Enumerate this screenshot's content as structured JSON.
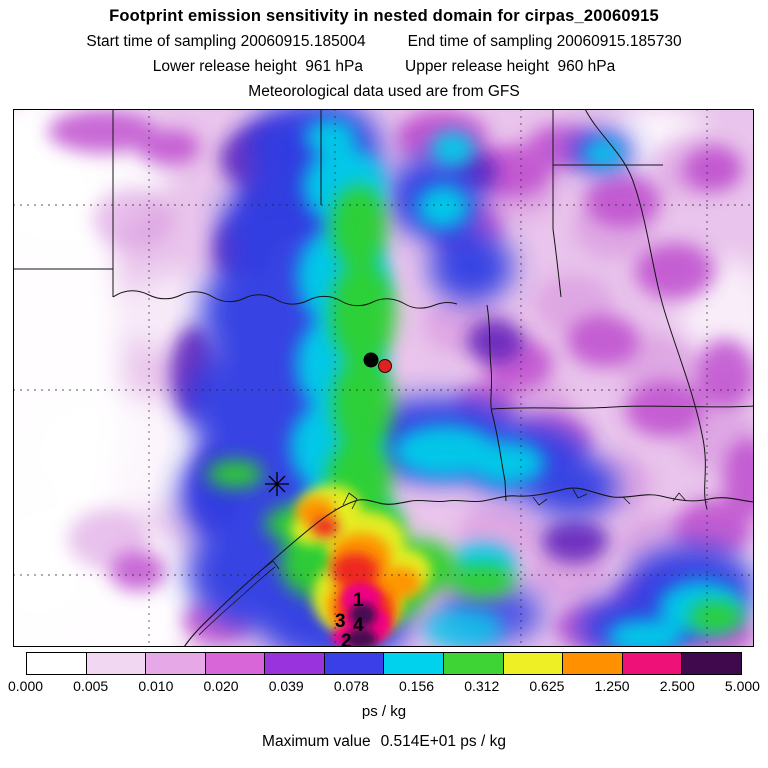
{
  "header": {
    "title": "Footprint emission sensitivity in nested domain for cirpas_20060915",
    "start_time": "Start time of sampling 20060915.185004",
    "end_time": "End time of sampling 20060915.185730",
    "lower_release": "Lower release height  961 hPa",
    "upper_release": "Upper release height  960 hPa",
    "met_line": "Meteorological data used are from GFS"
  },
  "map": {
    "markers": {
      "labels": [
        "1",
        "3",
        "4",
        "2"
      ]
    }
  },
  "colorbar": {
    "ticks": [
      "0.000",
      "0.005",
      "0.010",
      "0.020",
      "0.039",
      "0.078",
      "0.156",
      "0.312",
      "0.625",
      "1.250",
      "2.500",
      "5.000"
    ],
    "colors": [
      "#ffffff",
      "#f2d7f2",
      "#e6a8e6",
      "#d966d9",
      "#9933dd",
      "#3a3fe8",
      "#00d2ee",
      "#3fd435",
      "#efef25",
      "#ff9000",
      "#ee1177",
      "#40094e"
    ],
    "units": "ps / kg"
  },
  "footer": {
    "max_label": "Maximum value",
    "max_value": "0.514E+01 ps / kg"
  },
  "chart_data": {
    "type": "heatmap",
    "title": "Footprint emission sensitivity in nested domain for cirpas_20060915",
    "subtitle_lines": [
      "Start time of sampling 20060915.185004",
      "End time of sampling 20060915.185730",
      "Lower release height 961 hPa",
      "Upper release height 960 hPa",
      "Meteorological data used are from GFS"
    ],
    "units": "ps / kg",
    "colorbar_levels": [
      0.0,
      0.005,
      0.01,
      0.02,
      0.039,
      0.078,
      0.156,
      0.312,
      0.625,
      1.25,
      2.5,
      5.0
    ],
    "colorbar_colors": [
      "#ffffff",
      "#f2d7f2",
      "#e6a8e6",
      "#d966d9",
      "#9933dd",
      "#3a3fe8",
      "#00d2ee",
      "#3fd435",
      "#efef25",
      "#ff9000",
      "#ee1177",
      "#40094e"
    ],
    "maximum_value": 5.14,
    "maximum_value_label": "0.514E+01",
    "legend_position": "bottom",
    "region": "South-central United States: Texas, Oklahoma, Arkansas, Louisiana and Gulf of Mexico coast, with state borders and dashed lat/lon gridlines",
    "point_annotations": [
      "1",
      "3",
      "4",
      "2"
    ],
    "markers": [
      "black sampling dot and red sampling dot in north-central Texas",
      "asterisk/star marker near upper Texas Gulf coast"
    ],
    "notes": "Filled-contour footprint sensitivity: low values (white to violet/magenta) over most of domain; a blue-cyan-green plume extends from the sampling dots south to the coast; maximum (yellow-orange-red-magenta-dark, >5 ps/kg) just offshore south of the star marker near annotated points 1,3,4,2."
  }
}
